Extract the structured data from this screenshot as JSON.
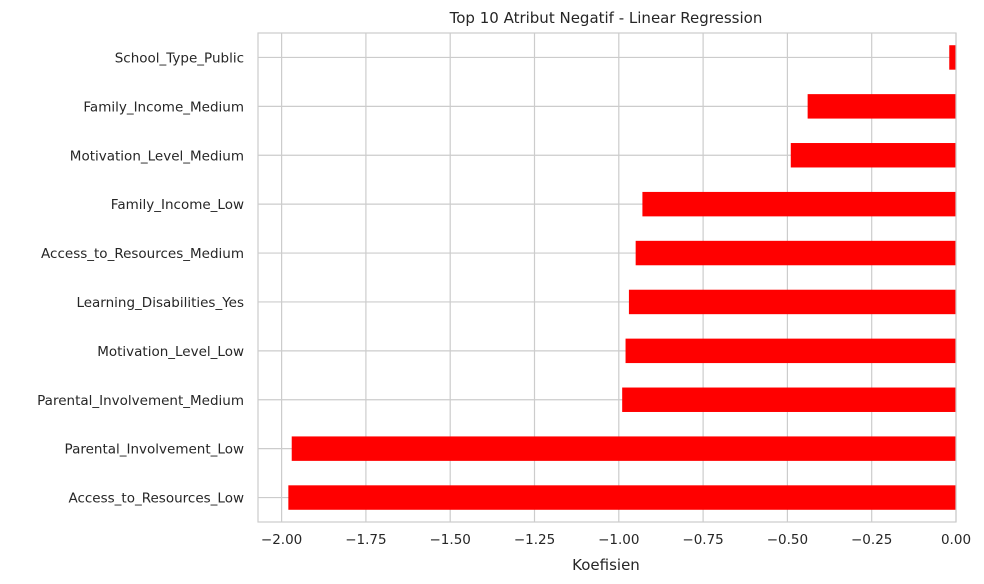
{
  "chart_data": {
    "type": "bar",
    "orientation": "horizontal",
    "title": "Top 10 Atribut Negatif - Linear Regression",
    "xlabel": "Koefisien",
    "ylabel": "",
    "xlim": [
      -2.07,
      0.0
    ],
    "x_ticks": [
      -2.0,
      -1.75,
      -1.5,
      -1.25,
      -1.0,
      -0.75,
      -0.5,
      -0.25,
      0.0
    ],
    "x_tick_labels": [
      "−2.00",
      "−1.75",
      "−1.50",
      "−1.25",
      "−1.00",
      "−0.75",
      "−0.50",
      "−0.25",
      "0.00"
    ],
    "categories": [
      "School_Type_Public",
      "Family_Income_Medium",
      "Motivation_Level_Medium",
      "Family_Income_Low",
      "Access_to_Resources_Medium",
      "Learning_Disabilities_Yes",
      "Motivation_Level_Low",
      "Parental_Involvement_Medium",
      "Parental_Involvement_Low",
      "Access_to_Resources_Low"
    ],
    "values": [
      -0.02,
      -0.44,
      -0.49,
      -0.93,
      -0.95,
      -0.97,
      -0.98,
      -0.99,
      -1.97,
      -1.98
    ],
    "bar_color": "#ff0000",
    "grid": true,
    "grid_color": "#cccccc",
    "legend": false
  }
}
